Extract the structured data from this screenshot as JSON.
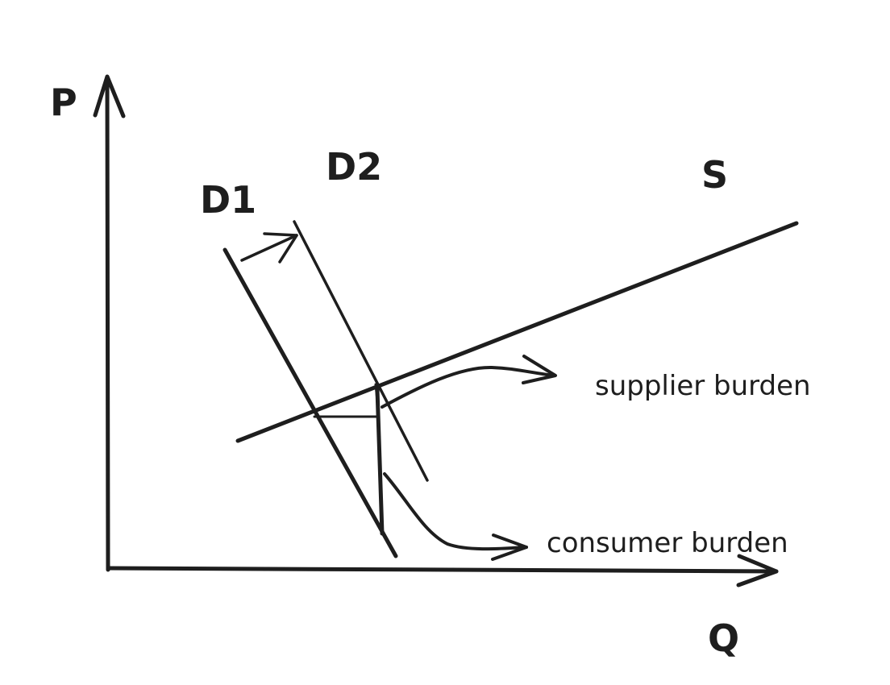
{
  "diagram": {
    "axes": {
      "y_label": "P",
      "x_label": "Q"
    },
    "curves": {
      "demand_1": "D1",
      "demand_2": "D2",
      "supply": "S"
    },
    "annotations": {
      "supplier": "supplier burden",
      "consumer": "consumer burden"
    },
    "colors": {
      "ink": "#1e1e1e",
      "background": "#ffffff"
    }
  }
}
